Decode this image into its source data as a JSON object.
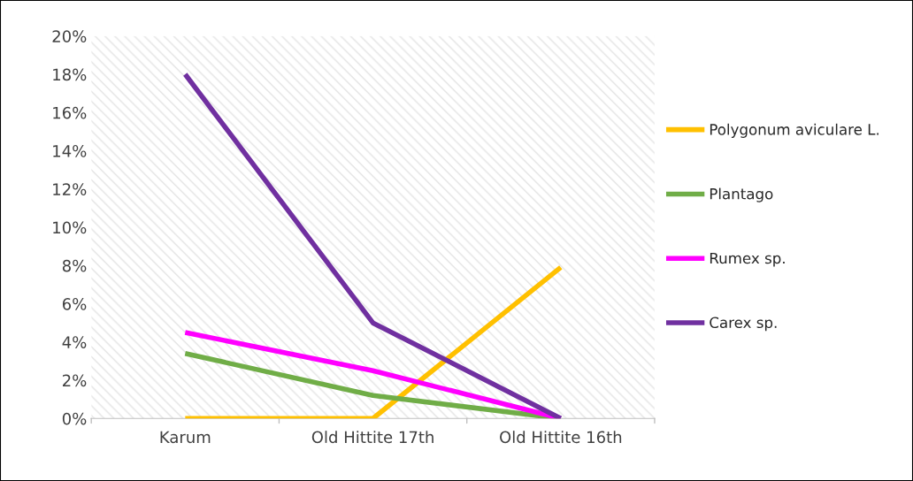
{
  "chart_data": {
    "type": "line",
    "categories": [
      "Karum",
      "Old Hittite 17th",
      "Old Hittite 16th"
    ],
    "series": [
      {
        "name": "Polygonum aviculare L.",
        "color": "#ffc000",
        "values": [
          0,
          0,
          7.9
        ]
      },
      {
        "name": "Plantago",
        "color": "#70ad47",
        "values": [
          3.4,
          1.2,
          0
        ]
      },
      {
        "name": "Rumex sp.",
        "color": "#ff00ff",
        "values": [
          4.5,
          2.5,
          0
        ]
      },
      {
        "name": "Carex sp.",
        "color": "#7030a0",
        "values": [
          18,
          5.0,
          0
        ]
      }
    ],
    "ylim": [
      0,
      20
    ],
    "yticks": [
      {
        "value": 0,
        "label": "0%"
      },
      {
        "value": 2,
        "label": "2%"
      },
      {
        "value": 4,
        "label": "4%"
      },
      {
        "value": 6,
        "label": "6%"
      },
      {
        "value": 8,
        "label": "8%"
      },
      {
        "value": 10,
        "label": "10%"
      },
      {
        "value": 12,
        "label": "12%"
      },
      {
        "value": 14,
        "label": "14%"
      },
      {
        "value": 16,
        "label": "16%"
      },
      {
        "value": 18,
        "label": "18%"
      },
      {
        "value": 20,
        "label": "20%"
      }
    ],
    "grid": false,
    "legend": "right",
    "marker": "none",
    "line_style": "solid"
  }
}
